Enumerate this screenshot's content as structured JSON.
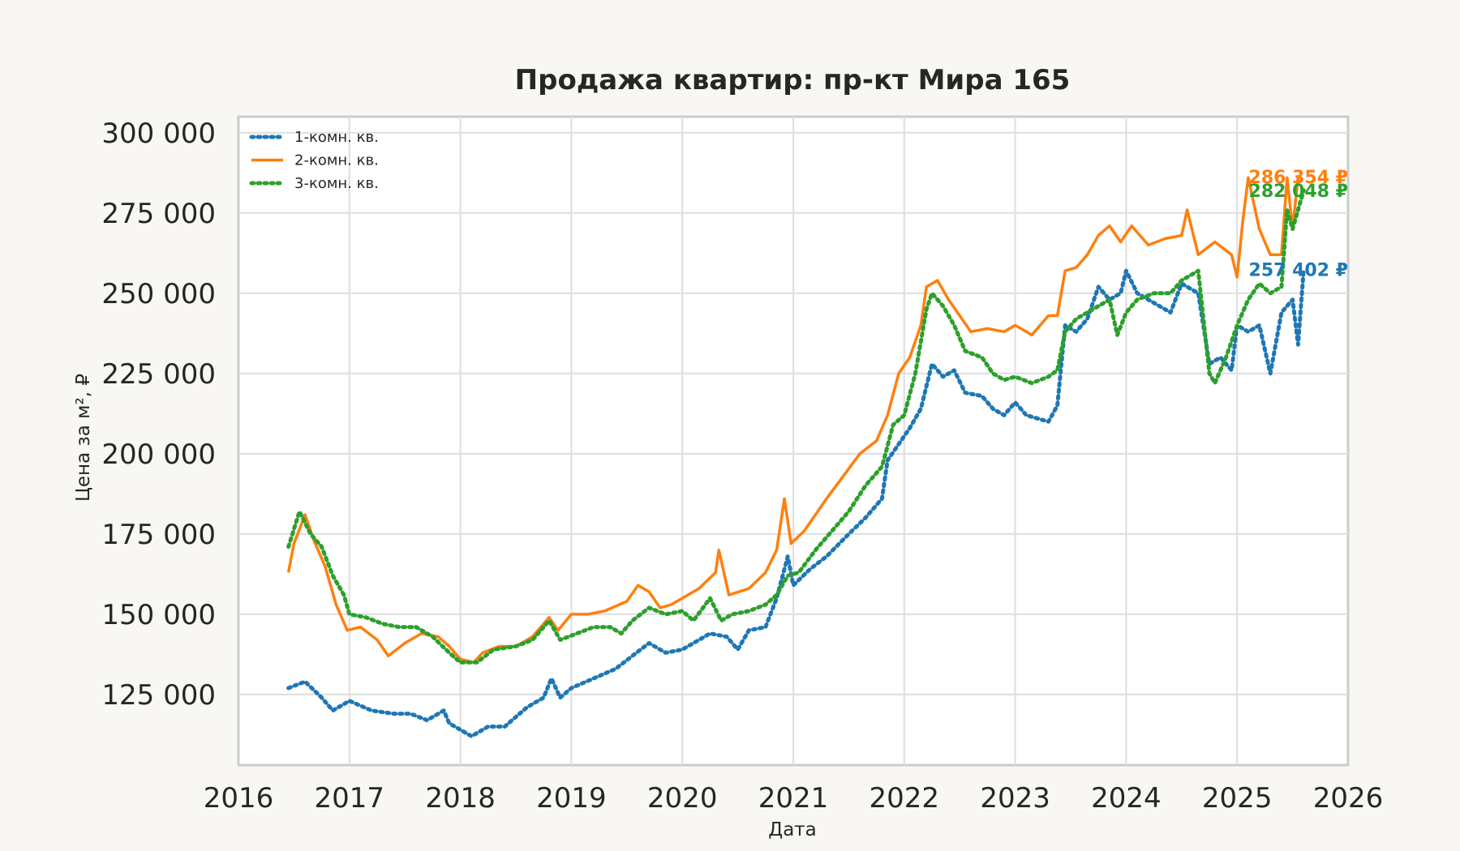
{
  "chart_data": {
    "type": "line",
    "title": "Продажа квартир: пр-кт Мира 165",
    "xlabel": "Дата",
    "ylabel": "Цена за м², ₽",
    "xlim": [
      2016,
      2026
    ],
    "ylim": [
      103000,
      305000
    ],
    "grid": true,
    "legend_position": "top-left",
    "x_ticks": [
      2016,
      2017,
      2018,
      2019,
      2020,
      2021,
      2022,
      2023,
      2024,
      2025,
      2026
    ],
    "x_tick_labels": [
      "2016",
      "2017",
      "2018",
      "2019",
      "2020",
      "2021",
      "2022",
      "2023",
      "2024",
      "2025",
      "2026"
    ],
    "y_ticks": [
      125000,
      150000,
      175000,
      200000,
      225000,
      250000,
      275000,
      300000
    ],
    "y_tick_labels": [
      "125 000",
      "150 000",
      "175 000",
      "200 000",
      "225 000",
      "250 000",
      "275 000",
      "300 000"
    ],
    "series": [
      {
        "name": "1-комн. кв.",
        "color": "#1f77b4",
        "style": "dotted",
        "end_label": "257 402 ₽",
        "points": [
          [
            2016.45,
            127000
          ],
          [
            2016.6,
            129000
          ],
          [
            2016.75,
            124000
          ],
          [
            2016.85,
            120000
          ],
          [
            2017.0,
            123000
          ],
          [
            2017.2,
            120000
          ],
          [
            2017.4,
            119000
          ],
          [
            2017.55,
            119000
          ],
          [
            2017.7,
            117000
          ],
          [
            2017.85,
            120000
          ],
          [
            2017.9,
            116000
          ],
          [
            2018.0,
            114000
          ],
          [
            2018.1,
            112000
          ],
          [
            2018.25,
            115000
          ],
          [
            2018.4,
            115000
          ],
          [
            2018.5,
            118000
          ],
          [
            2018.6,
            121000
          ],
          [
            2018.75,
            124000
          ],
          [
            2018.82,
            130000
          ],
          [
            2018.9,
            124000
          ],
          [
            2019.0,
            127000
          ],
          [
            2019.2,
            130000
          ],
          [
            2019.4,
            133000
          ],
          [
            2019.55,
            137000
          ],
          [
            2019.7,
            141000
          ],
          [
            2019.85,
            138000
          ],
          [
            2020.0,
            139000
          ],
          [
            2020.1,
            141000
          ],
          [
            2020.25,
            144000
          ],
          [
            2020.4,
            143000
          ],
          [
            2020.5,
            139000
          ],
          [
            2020.6,
            145000
          ],
          [
            2020.75,
            146000
          ],
          [
            2020.85,
            155000
          ],
          [
            2020.95,
            168000
          ],
          [
            2021.0,
            159000
          ],
          [
            2021.15,
            164000
          ],
          [
            2021.3,
            168000
          ],
          [
            2021.5,
            175000
          ],
          [
            2021.65,
            180000
          ],
          [
            2021.8,
            186000
          ],
          [
            2021.85,
            198000
          ],
          [
            2021.95,
            203000
          ],
          [
            2022.05,
            208000
          ],
          [
            2022.15,
            214000
          ],
          [
            2022.25,
            228000
          ],
          [
            2022.35,
            224000
          ],
          [
            2022.45,
            226000
          ],
          [
            2022.55,
            219000
          ],
          [
            2022.7,
            218000
          ],
          [
            2022.8,
            214000
          ],
          [
            2022.9,
            212000
          ],
          [
            2023.0,
            216000
          ],
          [
            2023.1,
            212000
          ],
          [
            2023.2,
            211000
          ],
          [
            2023.3,
            210000
          ],
          [
            2023.38,
            215000
          ],
          [
            2023.45,
            240000
          ],
          [
            2023.55,
            238000
          ],
          [
            2023.65,
            242000
          ],
          [
            2023.75,
            252000
          ],
          [
            2023.85,
            248000
          ],
          [
            2023.95,
            250000
          ],
          [
            2024.0,
            257000
          ],
          [
            2024.1,
            250000
          ],
          [
            2024.25,
            247000
          ],
          [
            2024.4,
            244000
          ],
          [
            2024.5,
            253000
          ],
          [
            2024.65,
            250000
          ],
          [
            2024.75,
            228000
          ],
          [
            2024.85,
            230000
          ],
          [
            2024.95,
            226000
          ],
          [
            2025.0,
            240000
          ],
          [
            2025.1,
            238000
          ],
          [
            2025.2,
            240000
          ],
          [
            2025.3,
            225000
          ],
          [
            2025.4,
            244000
          ],
          [
            2025.5,
            248000
          ],
          [
            2025.55,
            234000
          ],
          [
            2025.6,
            257402
          ]
        ]
      },
      {
        "name": "2-комн. кв.",
        "color": "#ff7f0e",
        "style": "solid",
        "end_label": "286 354 ₽",
        "points": [
          [
            2016.45,
            163000
          ],
          [
            2016.5,
            172000
          ],
          [
            2016.6,
            181000
          ],
          [
            2016.68,
            173000
          ],
          [
            2016.78,
            165000
          ],
          [
            2016.88,
            153000
          ],
          [
            2016.98,
            145000
          ],
          [
            2017.1,
            146000
          ],
          [
            2017.25,
            142000
          ],
          [
            2017.35,
            137000
          ],
          [
            2017.5,
            141000
          ],
          [
            2017.65,
            144000
          ],
          [
            2017.8,
            143000
          ],
          [
            2017.9,
            140000
          ],
          [
            2018.0,
            136000
          ],
          [
            2018.12,
            135000
          ],
          [
            2018.2,
            138000
          ],
          [
            2018.35,
            140000
          ],
          [
            2018.5,
            140000
          ],
          [
            2018.65,
            143000
          ],
          [
            2018.8,
            149000
          ],
          [
            2018.88,
            145000
          ],
          [
            2019.0,
            150000
          ],
          [
            2019.15,
            150000
          ],
          [
            2019.3,
            151000
          ],
          [
            2019.5,
            154000
          ],
          [
            2019.6,
            159000
          ],
          [
            2019.7,
            157000
          ],
          [
            2019.8,
            152000
          ],
          [
            2019.9,
            153000
          ],
          [
            2020.0,
            155000
          ],
          [
            2020.15,
            158000
          ],
          [
            2020.3,
            163000
          ],
          [
            2020.33,
            170000
          ],
          [
            2020.42,
            156000
          ],
          [
            2020.6,
            158000
          ],
          [
            2020.75,
            163000
          ],
          [
            2020.85,
            170000
          ],
          [
            2020.92,
            186000
          ],
          [
            2020.98,
            172000
          ],
          [
            2021.1,
            176000
          ],
          [
            2021.3,
            186000
          ],
          [
            2021.45,
            193000
          ],
          [
            2021.6,
            200000
          ],
          [
            2021.75,
            204000
          ],
          [
            2021.85,
            212000
          ],
          [
            2021.95,
            225000
          ],
          [
            2022.05,
            230000
          ],
          [
            2022.15,
            240000
          ],
          [
            2022.2,
            252000
          ],
          [
            2022.3,
            254000
          ],
          [
            2022.4,
            248000
          ],
          [
            2022.5,
            243000
          ],
          [
            2022.6,
            238000
          ],
          [
            2022.75,
            239000
          ],
          [
            2022.9,
            238000
          ],
          [
            2023.0,
            240000
          ],
          [
            2023.15,
            237000
          ],
          [
            2023.3,
            243000
          ],
          [
            2023.38,
            243000
          ],
          [
            2023.45,
            257000
          ],
          [
            2023.55,
            258000
          ],
          [
            2023.65,
            262000
          ],
          [
            2023.75,
            268000
          ],
          [
            2023.85,
            271000
          ],
          [
            2023.95,
            266000
          ],
          [
            2024.05,
            271000
          ],
          [
            2024.2,
            265000
          ],
          [
            2024.35,
            267000
          ],
          [
            2024.5,
            268000
          ],
          [
            2024.55,
            276000
          ],
          [
            2024.65,
            262000
          ],
          [
            2024.8,
            266000
          ],
          [
            2024.95,
            262000
          ],
          [
            2025.0,
            255000
          ],
          [
            2025.05,
            272000
          ],
          [
            2025.1,
            286000
          ],
          [
            2025.2,
            270000
          ],
          [
            2025.3,
            262000
          ],
          [
            2025.4,
            262000
          ],
          [
            2025.45,
            286000
          ],
          [
            2025.5,
            270000
          ],
          [
            2025.55,
            286354
          ]
        ]
      },
      {
        "name": "3-комн. кв.",
        "color": "#2ca02c",
        "style": "dotted",
        "end_label": "282 048 ₽",
        "points": [
          [
            2016.45,
            171000
          ],
          [
            2016.55,
            182000
          ],
          [
            2016.65,
            175000
          ],
          [
            2016.75,
            171000
          ],
          [
            2016.85,
            162000
          ],
          [
            2016.95,
            156000
          ],
          [
            2017.0,
            150000
          ],
          [
            2017.15,
            149000
          ],
          [
            2017.3,
            147000
          ],
          [
            2017.45,
            146000
          ],
          [
            2017.6,
            146000
          ],
          [
            2017.75,
            143000
          ],
          [
            2017.9,
            138000
          ],
          [
            2018.0,
            135000
          ],
          [
            2018.15,
            135000
          ],
          [
            2018.3,
            139000
          ],
          [
            2018.5,
            140000
          ],
          [
            2018.65,
            142000
          ],
          [
            2018.8,
            148000
          ],
          [
            2018.9,
            142000
          ],
          [
            2019.05,
            144000
          ],
          [
            2019.2,
            146000
          ],
          [
            2019.35,
            146000
          ],
          [
            2019.45,
            144000
          ],
          [
            2019.55,
            148000
          ],
          [
            2019.7,
            152000
          ],
          [
            2019.85,
            150000
          ],
          [
            2020.0,
            151000
          ],
          [
            2020.1,
            148000
          ],
          [
            2020.25,
            155000
          ],
          [
            2020.35,
            148000
          ],
          [
            2020.45,
            150000
          ],
          [
            2020.6,
            151000
          ],
          [
            2020.75,
            153000
          ],
          [
            2020.85,
            156000
          ],
          [
            2020.95,
            162000
          ],
          [
            2021.05,
            163000
          ],
          [
            2021.2,
            170000
          ],
          [
            2021.35,
            176000
          ],
          [
            2021.5,
            182000
          ],
          [
            2021.65,
            190000
          ],
          [
            2021.8,
            196000
          ],
          [
            2021.9,
            209000
          ],
          [
            2022.0,
            212000
          ],
          [
            2022.1,
            225000
          ],
          [
            2022.2,
            245000
          ],
          [
            2022.25,
            250000
          ],
          [
            2022.35,
            246000
          ],
          [
            2022.45,
            240000
          ],
          [
            2022.55,
            232000
          ],
          [
            2022.7,
            230000
          ],
          [
            2022.8,
            225000
          ],
          [
            2022.9,
            223000
          ],
          [
            2023.0,
            224000
          ],
          [
            2023.15,
            222000
          ],
          [
            2023.3,
            224000
          ],
          [
            2023.38,
            226000
          ],
          [
            2023.45,
            238000
          ],
          [
            2023.55,
            242000
          ],
          [
            2023.7,
            245000
          ],
          [
            2023.85,
            248000
          ],
          [
            2023.92,
            237000
          ],
          [
            2024.0,
            244000
          ],
          [
            2024.1,
            248000
          ],
          [
            2024.25,
            250000
          ],
          [
            2024.4,
            250000
          ],
          [
            2024.5,
            254000
          ],
          [
            2024.65,
            257000
          ],
          [
            2024.75,
            225000
          ],
          [
            2024.8,
            222000
          ],
          [
            2024.9,
            230000
          ],
          [
            2025.0,
            240000
          ],
          [
            2025.1,
            248000
          ],
          [
            2025.2,
            253000
          ],
          [
            2025.3,
            250000
          ],
          [
            2025.4,
            252000
          ],
          [
            2025.45,
            276000
          ],
          [
            2025.5,
            270000
          ],
          [
            2025.6,
            282048
          ]
        ]
      }
    ]
  }
}
